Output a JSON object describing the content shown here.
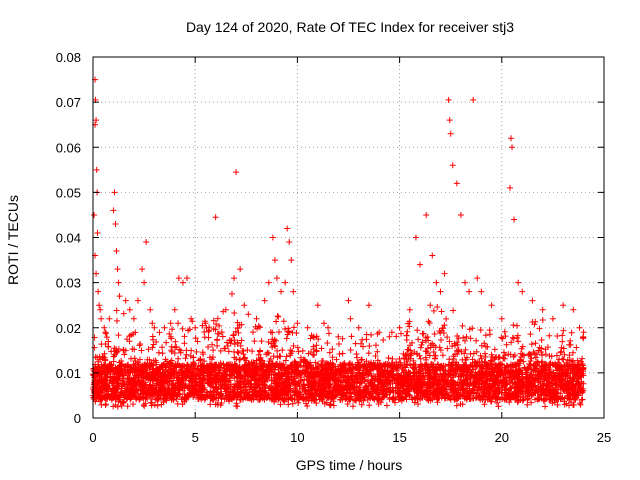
{
  "chart_data": {
    "type": "scatter",
    "title": "Day 124 of 2020, Rate Of TEC Index for receiver stj3",
    "xlabel": "GPS time / hours",
    "ylabel": "ROTI / TECUs",
    "xlim": [
      0,
      25
    ],
    "ylim": [
      0,
      0.08
    ],
    "xticks": [
      0,
      5,
      10,
      15,
      20,
      25
    ],
    "xtick_labels": [
      "0",
      "5",
      "10",
      "15",
      "20",
      "25"
    ],
    "yticks": [
      0,
      0.01,
      0.02,
      0.03,
      0.04,
      0.05,
      0.06,
      0.07,
      0.08
    ],
    "ytick_labels": [
      "0",
      "0.01",
      "0.02",
      "0.03",
      "0.04",
      "0.05",
      "0.06",
      "0.07",
      "0.08"
    ],
    "grid": true,
    "marker": "plus",
    "color": "#ff0000",
    "series": [
      {
        "name": "ROTI",
        "x": [
          0.1,
          0.12,
          0.15,
          0.1,
          0.18,
          0.2,
          0.05,
          0.22,
          0.1,
          0.15,
          0.25,
          0.3,
          0.35,
          0.4,
          0.55,
          0.6,
          0.8,
          1.0,
          1.05,
          1.1,
          1.15,
          1.2,
          1.25,
          1.3,
          1.6,
          1.8,
          2.0,
          2.2,
          2.4,
          2.5,
          2.6,
          2.8,
          2.9,
          3.0,
          3.5,
          3.8,
          4.0,
          4.2,
          4.4,
          4.6,
          4.8,
          5.0,
          5.5,
          6.0,
          6.5,
          6.8,
          6.9,
          7.0,
          7.2,
          7.4,
          7.6,
          8.0,
          8.4,
          8.6,
          8.8,
          8.9,
          9.0,
          9.2,
          9.4,
          9.5,
          9.6,
          9.7,
          9.8,
          10.0,
          10.5,
          11.0,
          11.3,
          11.5,
          12.0,
          12.5,
          12.6,
          13.0,
          13.5,
          14.0,
          14.5,
          15.0,
          15.5,
          15.8,
          16.0,
          16.3,
          16.5,
          16.6,
          16.8,
          17.0,
          17.2,
          17.4,
          17.45,
          17.5,
          17.6,
          17.8,
          18.0,
          18.2,
          18.4,
          18.6,
          18.8,
          19.0,
          19.5,
          20.0,
          20.4,
          20.45,
          20.5,
          20.6,
          20.8,
          21.0,
          21.5,
          22.0,
          22.5,
          23.0,
          23.5,
          23.8,
          24.0
        ],
        "y": [
          0.075,
          0.0705,
          0.066,
          0.065,
          0.055,
          0.05,
          0.045,
          0.041,
          0.036,
          0.032,
          0.028,
          0.025,
          0.024,
          0.022,
          0.02,
          0.019,
          0.022,
          0.046,
          0.05,
          0.043,
          0.037,
          0.033,
          0.03,
          0.027,
          0.026,
          0.024,
          0.022,
          0.026,
          0.033,
          0.03,
          0.039,
          0.024,
          0.021,
          0.02,
          0.02,
          0.021,
          0.024,
          0.031,
          0.03,
          0.031,
          0.022,
          0.02,
          0.021,
          0.0445,
          0.024,
          0.0275,
          0.031,
          0.0545,
          0.033,
          0.025,
          0.023,
          0.022,
          0.026,
          0.03,
          0.04,
          0.035,
          0.031,
          0.028,
          0.03,
          0.042,
          0.039,
          0.035,
          0.028,
          0.021,
          0.02,
          0.025,
          0.021,
          0.02,
          0.018,
          0.026,
          0.022,
          0.02,
          0.025,
          0.019,
          0.018,
          0.02,
          0.024,
          0.04,
          0.034,
          0.045,
          0.025,
          0.036,
          0.03,
          0.028,
          0.032,
          0.0705,
          0.066,
          0.063,
          0.056,
          0.052,
          0.045,
          0.03,
          0.028,
          0.0705,
          0.031,
          0.028,
          0.025,
          0.022,
          0.051,
          0.062,
          0.06,
          0.044,
          0.03,
          0.028,
          0.026,
          0.024,
          0.022,
          0.025,
          0.024,
          0.02,
          0.019
        ],
        "dense_band": {
          "x_range": [
            0,
            24
          ],
          "y_floor": 0.0025,
          "y_typical_range": [
            0.004,
            0.012
          ],
          "y_upper_envelope": 0.025
        }
      }
    ]
  }
}
